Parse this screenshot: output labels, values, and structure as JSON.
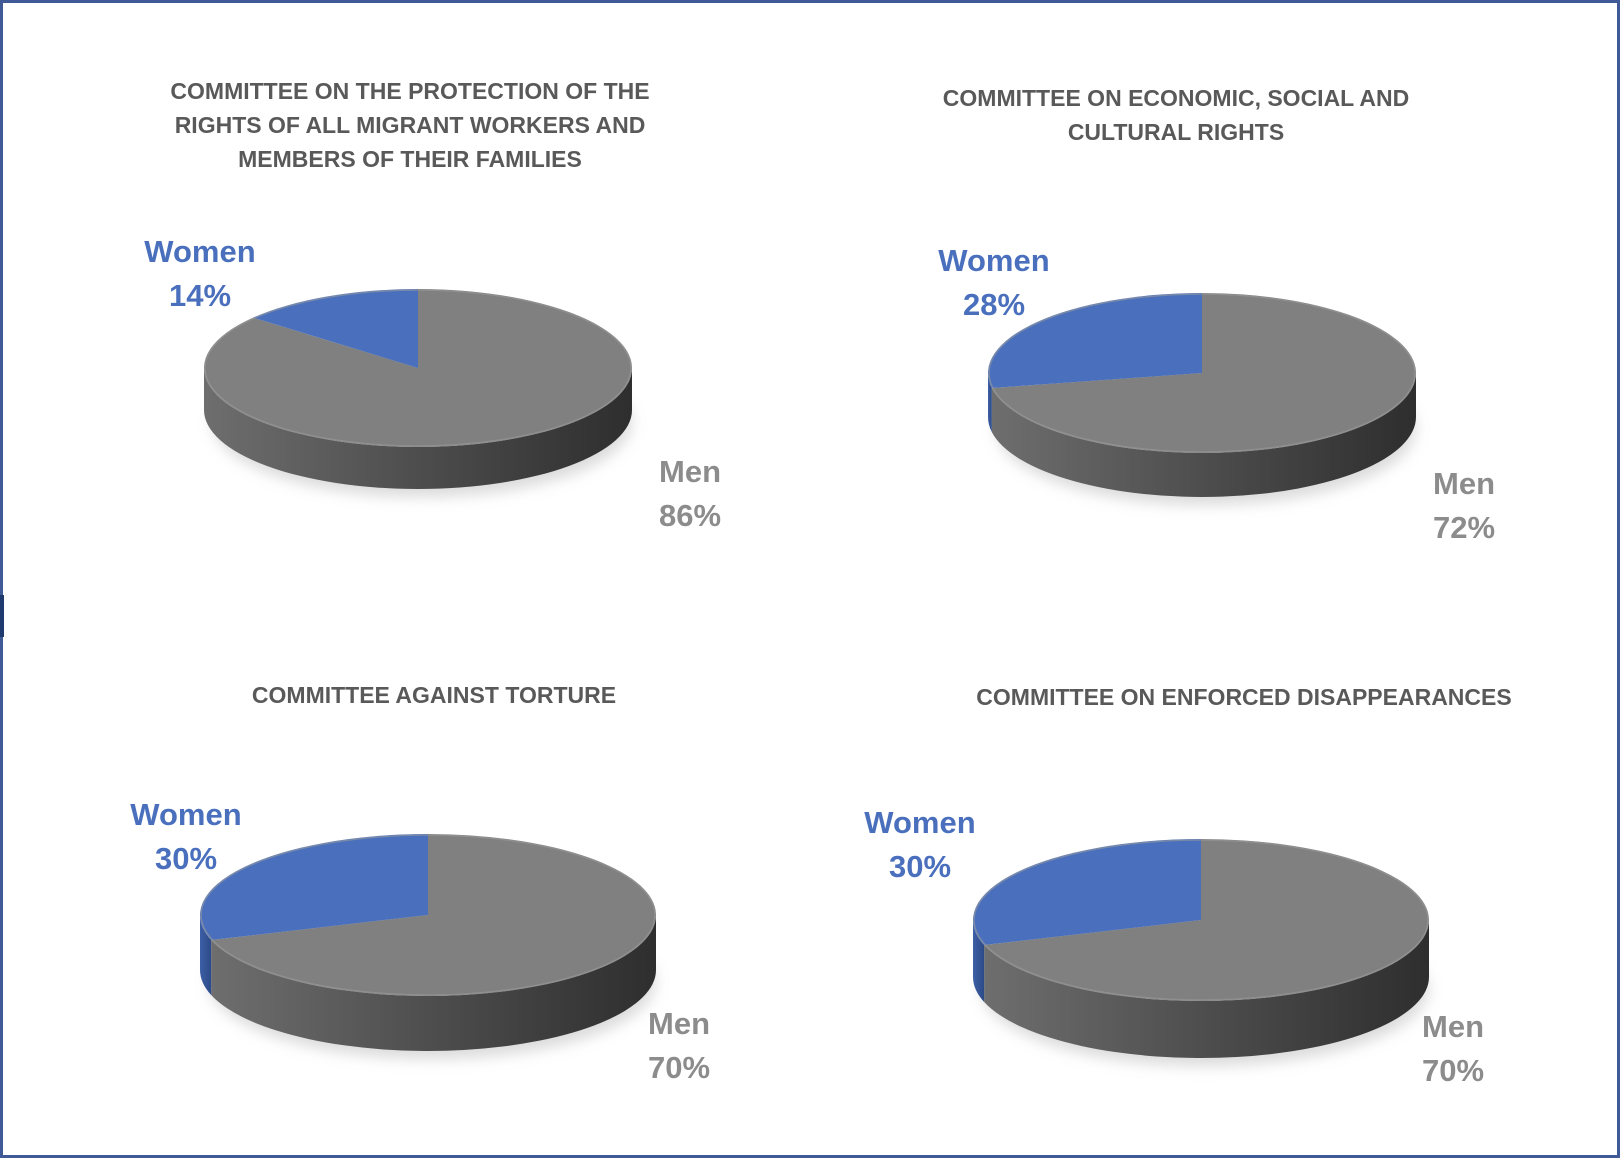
{
  "chart_data": [
    {
      "type": "pie",
      "title_lines": [
        "COMMITTEE ON THE PROTECTION OF THE",
        "RIGHTS OF ALL MIGRANT WORKERS AND",
        "MEMBERS OF THEIR FAMILIES"
      ],
      "slices": [
        {
          "name": "Women",
          "value": 14,
          "label": "14%",
          "color": "#4a70bd"
        },
        {
          "name": "Men",
          "value": 86,
          "label": "86%",
          "color": "#808080"
        }
      ]
    },
    {
      "type": "pie",
      "title_lines": [
        "COMMITTEE ON ECONOMIC, SOCIAL AND",
        "CULTURAL RIGHTS"
      ],
      "slices": [
        {
          "name": "Women",
          "value": 28,
          "label": "28%",
          "color": "#4a70bd"
        },
        {
          "name": "Men",
          "value": 72,
          "label": "72%",
          "color": "#808080"
        }
      ]
    },
    {
      "type": "pie",
      "title_lines": [
        "COMMITTEE AGAINST TORTURE"
      ],
      "slices": [
        {
          "name": "Women",
          "value": 30,
          "label": "30%",
          "color": "#4a70bd"
        },
        {
          "name": "Men",
          "value": 70,
          "label": "70%",
          "color": "#808080"
        }
      ]
    },
    {
      "type": "pie",
      "title_lines": [
        "COMMITTEE ON ENFORCED DISAPPEARANCES"
      ],
      "slices": [
        {
          "name": "Women",
          "value": 30,
          "label": "30%",
          "color": "#4a70bd"
        },
        {
          "name": "Men",
          "value": 70,
          "label": "70%",
          "color": "#808080"
        }
      ]
    }
  ],
  "colors": {
    "women_label": "#4a70bd",
    "men_label": "#8c8c8c",
    "title": "#595959",
    "men_side_dark": "#333333",
    "men_side_light": "#6e6e6e",
    "border": "#3f5a96"
  }
}
